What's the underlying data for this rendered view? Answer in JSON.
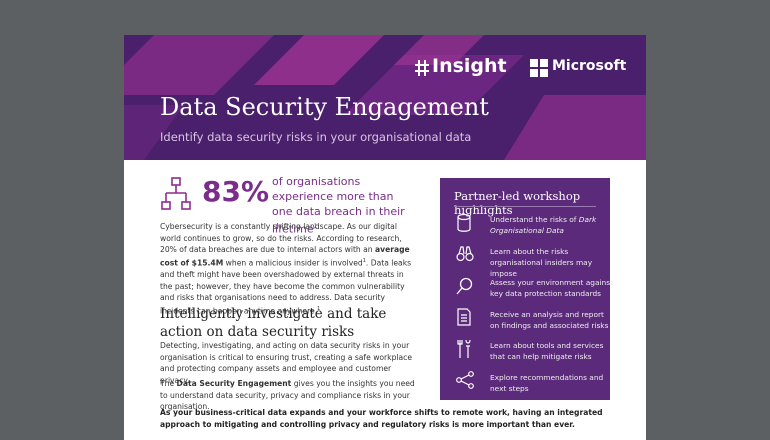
{
  "header": {
    "brand_left": "Insight",
    "brand_right": "Microsoft",
    "title": "Data Security Engagement",
    "subtitle": "Identify data security risks in your organisational data"
  },
  "stat": {
    "value": "83%",
    "text": "of organisations experience more than one data breach in their lifetime",
    "sup": "1"
  },
  "intro": {
    "before": "Cybersecurity is a constantly shifting landscape. As our digital world continues to grow, so do the risks. According to research, 20% of data breaches are due to internal actors with an ",
    "bold": "average cost of $15.4M",
    "middle": " when a malicious insider is involved",
    "sup1": "1",
    "after": ". Data leaks and theft might have been overshadowed by external threats in the past; however, they have become the common vulnerability and risks that organisations need to address. Data security incidents can happen anytime anywhere.",
    "sup2": "1"
  },
  "section": {
    "heading": "Intelligently investigate and take action on data security risks",
    "para1": "Detecting, investigating, and acting on data security risks in your organisation is critical to ensuring trust, creating a safe workplace and protecting company assets and employee and customer privacy.",
    "para2_before": "The ",
    "para2_bold": "Data Security Engagement",
    "para2_after": " gives you the insights you need to understand data security, privacy and compliance risks in your organisation."
  },
  "closing": "As your business-critical data expands and your workforce shifts to remote work, having an integrated approach to mitigating and controlling privacy and regulatory risks is more important than ever.",
  "sidebar": {
    "title": "Partner-led workshop highlights",
    "items": [
      {
        "text": "Understand the risks of ",
        "italic": "Dark Organisational Data"
      },
      {
        "text": "Learn about the risks organisational insiders may impose"
      },
      {
        "text": "Assess your environment against key data protection standards"
      },
      {
        "text": "Receive an analysis and report on findings and associated risks"
      },
      {
        "text": "Learn about tools and services that can help mitigate risks"
      },
      {
        "text": "Explore recommendations and next steps"
      }
    ]
  }
}
